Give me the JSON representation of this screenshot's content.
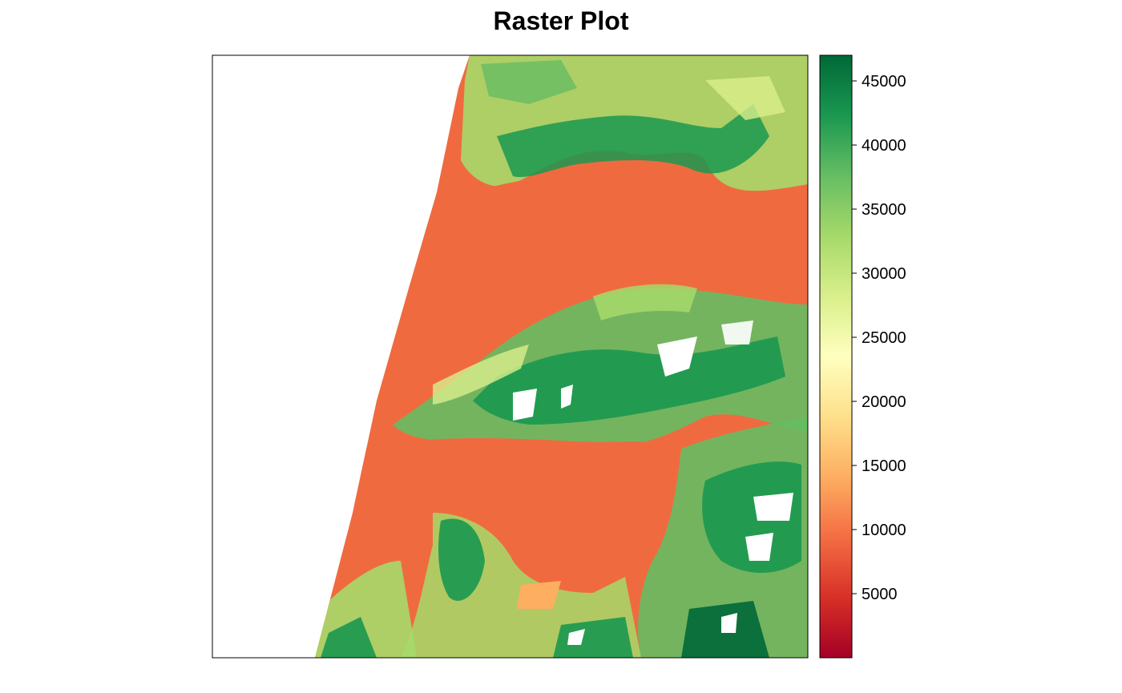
{
  "title": "Raster Plot",
  "colorbar": {
    "palette": "RdYlGn",
    "range": [
      0,
      47000
    ],
    "tick_values": [
      5000,
      10000,
      15000,
      20000,
      25000,
      30000,
      35000,
      40000,
      45000
    ],
    "tick_labels": [
      "5000",
      "10000",
      "15000",
      "20000",
      "25000",
      "30000",
      "35000",
      "40000",
      "45000"
    ],
    "colors": [
      "#a50026",
      "#d73027",
      "#f46d43",
      "#fdae61",
      "#fee08b",
      "#ffffbf",
      "#d9ef8b",
      "#a6d96a",
      "#66bd63",
      "#1a9850",
      "#006837"
    ]
  },
  "map_colors": {
    "no_data": "#ffffff",
    "low": "#f06a40",
    "low_alt": "#ec6a45",
    "mid": "#d9ef8b",
    "high": "#66bd63",
    "very_high": "#1a9850",
    "peak": "#006837"
  }
}
